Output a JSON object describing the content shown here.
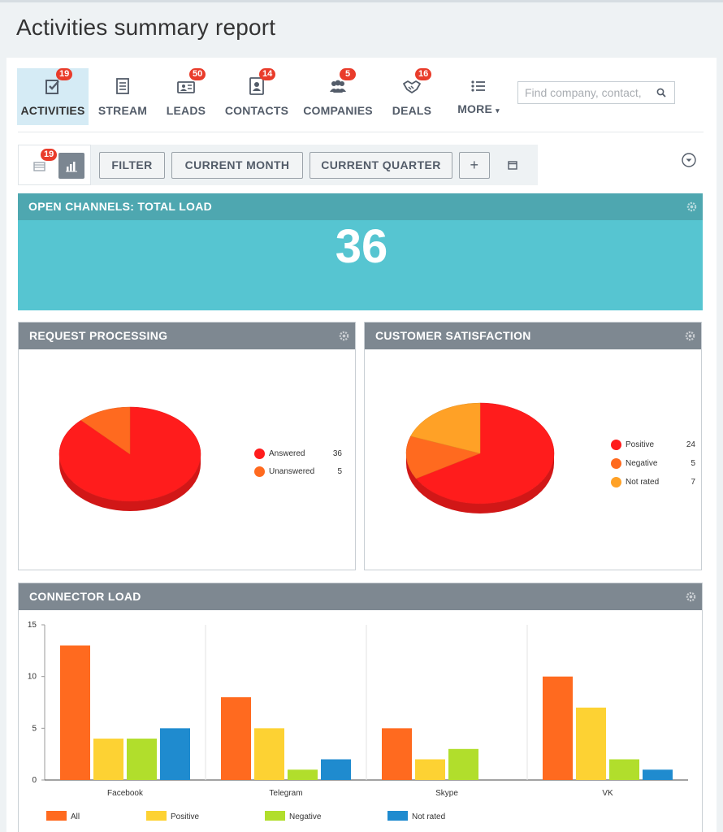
{
  "page": {
    "title": "Activities summary report"
  },
  "nav": {
    "items": [
      {
        "label": "ACTIVITIES",
        "badge": "19",
        "icon": "activities-icon",
        "active": true
      },
      {
        "label": "STREAM",
        "badge": "",
        "icon": "stream-icon",
        "active": false
      },
      {
        "label": "LEADS",
        "badge": "50",
        "icon": "leads-icon",
        "active": false
      },
      {
        "label": "CONTACTS",
        "badge": "14",
        "icon": "contacts-icon",
        "active": false
      },
      {
        "label": "COMPANIES",
        "badge": "5",
        "icon": "companies-icon",
        "active": false
      },
      {
        "label": "DEALS",
        "badge": "16",
        "icon": "deals-icon",
        "active": false
      },
      {
        "label": "MORE",
        "badge": "",
        "icon": "more-icon",
        "active": false
      }
    ],
    "more_caret": "▾",
    "search_placeholder": "Find company, contact,"
  },
  "toolbar": {
    "list_view_badge": "19",
    "filter_label": "FILTER",
    "current_month_label": "CURRENT MONTH",
    "current_quarter_label": "CURRENT QUARTER",
    "add_label": "+"
  },
  "open_channels": {
    "title": "OPEN CHANNELS: TOTAL LOAD",
    "value": "36",
    "color": "#56c5d1",
    "header_color": "#4ea7b0"
  },
  "request_processing": {
    "title": "REQUEST PROCESSING",
    "legend": [
      {
        "label": "Answered",
        "value": "36",
        "color": "#ff1c1c"
      },
      {
        "label": "Unanswered",
        "value": "5",
        "color": "#ff6a1f"
      }
    ]
  },
  "customer_satisfaction": {
    "title": "CUSTOMER SATISFACTION",
    "legend": [
      {
        "label": "Positive",
        "value": "24",
        "color": "#ff1c1c"
      },
      {
        "label": "Negative",
        "value": "5",
        "color": "#ff6a1f"
      },
      {
        "label": "Not rated",
        "value": "7",
        "color": "#ffa126"
      }
    ]
  },
  "connector_load": {
    "title": "CONNECTOR LOAD",
    "legend": [
      {
        "label": "All",
        "color": "#ff6a1f"
      },
      {
        "label": "Positive",
        "color": "#fdd233"
      },
      {
        "label": "Negative",
        "color": "#b1de2c"
      },
      {
        "label": "Not rated",
        "color": "#1f8bcf"
      }
    ]
  },
  "chart_data": [
    {
      "type": "pie",
      "title": "REQUEST PROCESSING",
      "categories": [
        "Answered",
        "Unanswered"
      ],
      "values": [
        36,
        5
      ],
      "colors": [
        "#ff1c1c",
        "#ff6a1f"
      ],
      "legend": "right"
    },
    {
      "type": "pie",
      "title": "CUSTOMER SATISFACTION",
      "categories": [
        "Positive",
        "Negative",
        "Not rated"
      ],
      "values": [
        24,
        5,
        7
      ],
      "colors": [
        "#ff1c1c",
        "#ff6a1f",
        "#ffa126"
      ],
      "legend": "right"
    },
    {
      "type": "bar",
      "title": "CONNECTOR LOAD",
      "categories": [
        "Facebook",
        "Telegram",
        "Skype",
        "VK"
      ],
      "series": [
        {
          "name": "All",
          "values": [
            13,
            8,
            5,
            10
          ],
          "color": "#ff6a1f"
        },
        {
          "name": "Positive",
          "values": [
            4,
            5,
            2,
            7
          ],
          "color": "#fdd233"
        },
        {
          "name": "Negative",
          "values": [
            4,
            1,
            3,
            2
          ],
          "color": "#b1de2c"
        },
        {
          "name": "Not rated",
          "values": [
            5,
            2,
            0,
            1
          ],
          "color": "#1f8bcf"
        }
      ],
      "ylim": [
        0,
        15
      ],
      "yticks": [
        0,
        5,
        10,
        15
      ],
      "legend": "bottom"
    }
  ]
}
